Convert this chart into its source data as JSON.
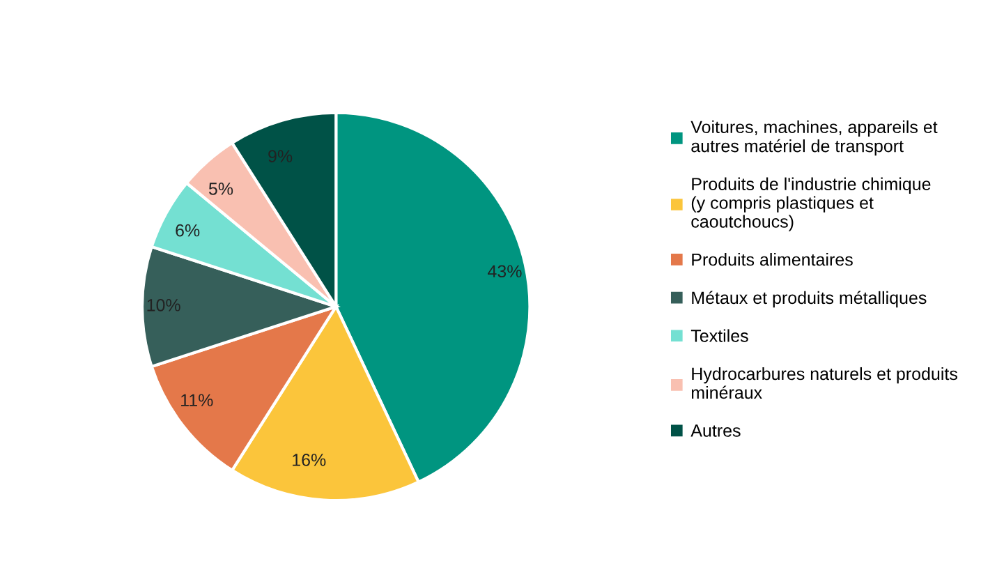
{
  "chart_data": {
    "type": "pie",
    "categories": [
      "Voitures, machines, appareils et autres matériel de transport",
      "Produits de l'industrie chimique (y compris plastiques et caoutchoucs)",
      "Produits alimentaires",
      "Métaux et produits métalliques",
      "Textiles",
      "Hydrocarbures naturels et produits minéraux",
      "Autres"
    ],
    "values": [
      43,
      16,
      11,
      10,
      6,
      5,
      9
    ],
    "colors": [
      "#009580",
      "#fbc53b",
      "#e4784a",
      "#365f5a",
      "#74e0d2",
      "#f9c0b1",
      "#005247"
    ],
    "value_labels": [
      "43%",
      "16%",
      "11%",
      "10%",
      "6%",
      "5%",
      "9%"
    ],
    "legend": "right"
  }
}
